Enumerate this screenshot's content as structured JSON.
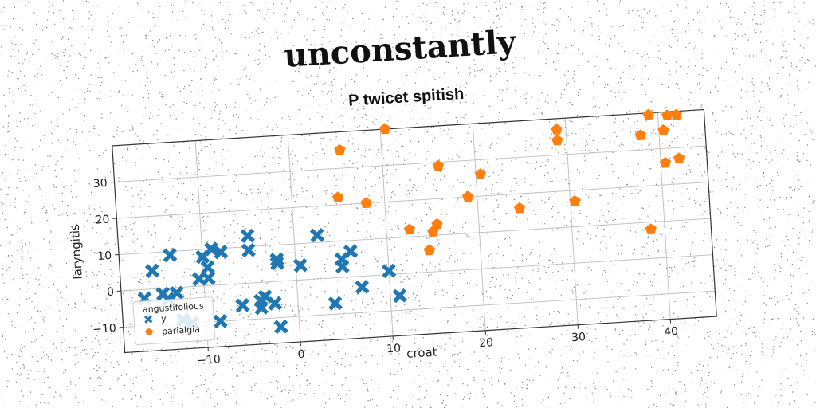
{
  "suptitle": "unconstantly",
  "chart_data": {
    "type": "scatter",
    "title": "P twicet spitish",
    "xlabel": "croat",
    "ylabel": "laryngitis",
    "xlim": [
      -19,
      45
    ],
    "ylim": [
      -17,
      40
    ],
    "xticks": [
      -10,
      0,
      10,
      20,
      30,
      40
    ],
    "yticks": [
      -10,
      0,
      10,
      20,
      30
    ],
    "grid": true,
    "legend": {
      "title": "angustifolious",
      "placement": "lower-left"
    },
    "series": [
      {
        "name": "y",
        "marker": "x",
        "color": "#1f77b4",
        "points": [
          [
            -16.5,
            -2.5
          ],
          [
            -15.5,
            5
          ],
          [
            -14.5,
            -1.5
          ],
          [
            -13.5,
            9
          ],
          [
            -14,
            -3
          ],
          [
            -13,
            -1.5
          ],
          [
            -12.5,
            -9
          ],
          [
            -11.5,
            -10
          ],
          [
            -10.5,
            2
          ],
          [
            -10,
            8
          ],
          [
            -9.5,
            5
          ],
          [
            -9.5,
            2
          ],
          [
            -9,
            10
          ],
          [
            -8,
            9
          ],
          [
            -8.5,
            -10
          ],
          [
            -6,
            -6
          ],
          [
            -5,
            13
          ],
          [
            -5,
            9
          ],
          [
            -4,
            -5
          ],
          [
            -4,
            -7
          ],
          [
            -3.5,
            -4
          ],
          [
            -2.5,
            -6
          ],
          [
            -2,
            -12.5
          ],
          [
            -2,
            6
          ],
          [
            -2,
            5
          ],
          [
            0.5,
            4
          ],
          [
            2.5,
            12
          ],
          [
            4,
            -7
          ],
          [
            5,
            5
          ],
          [
            5,
            3
          ],
          [
            6,
            7
          ],
          [
            7,
            -3
          ],
          [
            10,
            1
          ],
          [
            11,
            -6
          ]
        ]
      },
      {
        "name": "parialgia",
        "marker": "pentagon",
        "color": "#ff7f0e",
        "points": [
          [
            5,
            22
          ],
          [
            5.5,
            35
          ],
          [
            8,
            20
          ],
          [
            10.5,
            40
          ],
          [
            12.5,
            12
          ],
          [
            14.5,
            6
          ],
          [
            15,
            11
          ],
          [
            15.5,
            13
          ],
          [
            16,
            29
          ],
          [
            19,
            20
          ],
          [
            20.5,
            26
          ],
          [
            24.5,
            16
          ],
          [
            29,
            37
          ],
          [
            29,
            34
          ],
          [
            30.5,
            17
          ],
          [
            38,
            34
          ],
          [
            38.5,
            8
          ],
          [
            39,
            39.5
          ],
          [
            40.5,
            35
          ],
          [
            40.5,
            26
          ],
          [
            41,
            39
          ],
          [
            42,
            39
          ],
          [
            42,
            27
          ]
        ]
      }
    ]
  }
}
